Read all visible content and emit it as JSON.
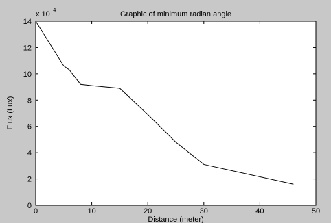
{
  "chart_data": {
    "type": "line",
    "title": "Graphic of minimum radian angle",
    "x_label": "Distance (meter)",
    "y_label": "Flux (Lux)",
    "y_multiplier": "x 10",
    "y_multiplier_exponent": "4",
    "x": [
      0,
      5,
      6,
      8,
      10,
      15,
      20,
      25,
      30,
      46
    ],
    "series": [
      {
        "name": "Flux",
        "color": "#000000",
        "values": [
          14,
          10.6,
          10.3,
          9.2,
          9.1,
          8.9,
          6.9,
          4.8,
          3.1,
          1.6
        ]
      }
    ],
    "xlim": [
      0,
      50
    ],
    "xticks": [
      0,
      10,
      20,
      30,
      40,
      50
    ],
    "ylim": [
      0,
      14
    ],
    "yticks": [
      0,
      2,
      4,
      6,
      8,
      10,
      12,
      14
    ],
    "grid": false
  }
}
